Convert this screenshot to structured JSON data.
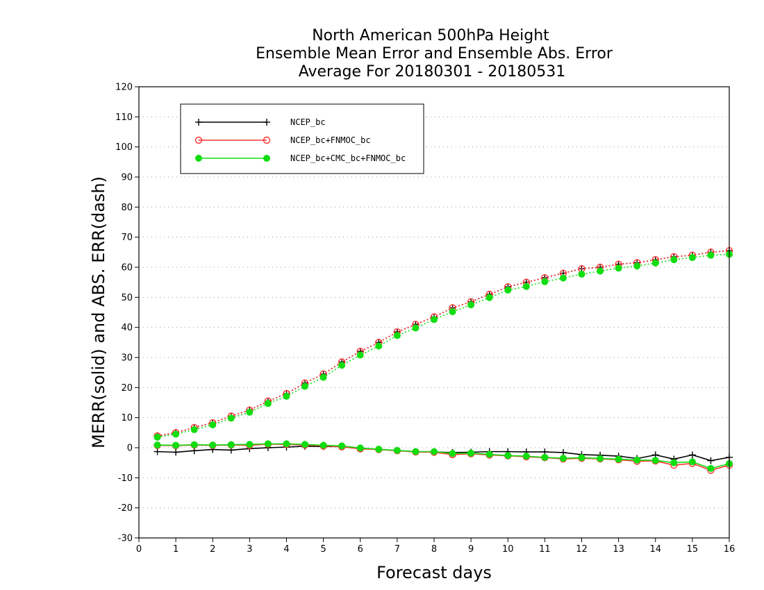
{
  "chart_data": {
    "type": "line",
    "title_lines": [
      "North American 500hPa Height",
      "Ensemble Mean Error and Ensemble Abs. Error",
      "Average For 20180301 - 20180531"
    ],
    "xlabel": "Forecast days",
    "ylabel": "MERR(solid) and ABS. ERR(dash)",
    "xlim": [
      0,
      16
    ],
    "ylim": [
      -30,
      120
    ],
    "x_ticks": [
      "0",
      "1",
      "2",
      "3",
      "4",
      "5",
      "6",
      "7",
      "8",
      "9",
      "10",
      "11",
      "12",
      "13",
      "14",
      "15",
      "16"
    ],
    "y_ticks": [
      "-30",
      "-20",
      "-10",
      "0",
      "10",
      "20",
      "30",
      "40",
      "50",
      "60",
      "70",
      "80",
      "90",
      "100",
      "110",
      "120"
    ],
    "grid": true,
    "legend_position": "top-left",
    "x": [
      0.5,
      1,
      1.5,
      2,
      2.5,
      3,
      3.5,
      4,
      4.5,
      5,
      5.5,
      6,
      6.5,
      7,
      7.5,
      8,
      8.5,
      9,
      9.5,
      10,
      10.5,
      11,
      11.5,
      12,
      12.5,
      13,
      13.5,
      14,
      14.5,
      15,
      15.5,
      16
    ],
    "series": [
      {
        "name": "NCEP_bc",
        "color": "#000000",
        "marker": "plus",
        "merr": [
          -1.3,
          -1.5,
          -1.0,
          -0.6,
          -0.8,
          -0.3,
          0.0,
          0.2,
          0.5,
          0.4,
          0.4,
          -0.2,
          -0.6,
          -0.9,
          -1.3,
          -1.4,
          -1.6,
          -1.5,
          -1.3,
          -1.3,
          -1.4,
          -1.4,
          -1.6,
          -2.3,
          -2.5,
          -2.8,
          -3.6,
          -2.4,
          -3.8,
          -2.4,
          -4.3,
          -3.2
        ],
        "abs_err": [
          3.9,
          5.0,
          6.7,
          8.3,
          10.5,
          12.5,
          15.5,
          18.0,
          21.5,
          24.5,
          28.5,
          32.0,
          35.0,
          38.5,
          41.0,
          43.5,
          46.5,
          48.5,
          51.0,
          53.5,
          55.0,
          56.5,
          58.0,
          59.5,
          60.0,
          61.0,
          61.5,
          62.5,
          63.5,
          64.0,
          65.0,
          65.5
        ]
      },
      {
        "name": "NCEP_bc+FNMOC_bc",
        "color": "#ff3333",
        "marker": "open-circle",
        "merr": [
          0.8,
          0.7,
          0.9,
          0.8,
          0.9,
          0.8,
          1.2,
          1.1,
          0.9,
          0.6,
          0.3,
          -0.4,
          -0.6,
          -1.0,
          -1.4,
          -1.5,
          -2.3,
          -2.0,
          -2.4,
          -2.7,
          -3.0,
          -3.3,
          -3.7,
          -3.5,
          -3.7,
          -4.0,
          -4.5,
          -4.4,
          -5.8,
          -5.2,
          -7.5,
          -5.8
        ],
        "abs_err": [
          3.9,
          5.0,
          6.7,
          8.3,
          10.5,
          12.5,
          15.5,
          18.0,
          21.5,
          24.5,
          28.5,
          32.0,
          35.0,
          38.5,
          41.0,
          43.5,
          46.5,
          48.5,
          51.0,
          53.5,
          55.0,
          56.5,
          58.0,
          59.5,
          60.0,
          61.0,
          61.5,
          62.5,
          63.5,
          64.0,
          65.0,
          65.5
        ]
      },
      {
        "name": "NCEP_bc+CMC_bc+FNMOC_bc",
        "color": "#11dd11",
        "marker": "filled-circle",
        "merr": [
          0.9,
          0.8,
          1.0,
          0.9,
          1.0,
          1.1,
          1.3,
          1.3,
          1.1,
          0.8,
          0.6,
          -0.1,
          -0.5,
          -0.9,
          -1.3,
          -1.3,
          -1.9,
          -1.8,
          -2.2,
          -2.6,
          -2.8,
          -3.2,
          -3.5,
          -3.3,
          -3.6,
          -3.8,
          -4.1,
          -4.2,
          -5.0,
          -4.7,
          -6.9,
          -5.3
        ],
        "abs_err": [
          3.5,
          4.5,
          6.0,
          7.6,
          9.8,
          11.8,
          14.7,
          17.1,
          20.4,
          23.4,
          27.4,
          30.8,
          33.8,
          37.3,
          39.8,
          42.6,
          45.2,
          47.5,
          49.9,
          52.4,
          53.6,
          55.2,
          56.4,
          57.7,
          58.7,
          59.7,
          60.4,
          61.4,
          62.5,
          63.2,
          64.0,
          64.3
        ]
      }
    ]
  }
}
